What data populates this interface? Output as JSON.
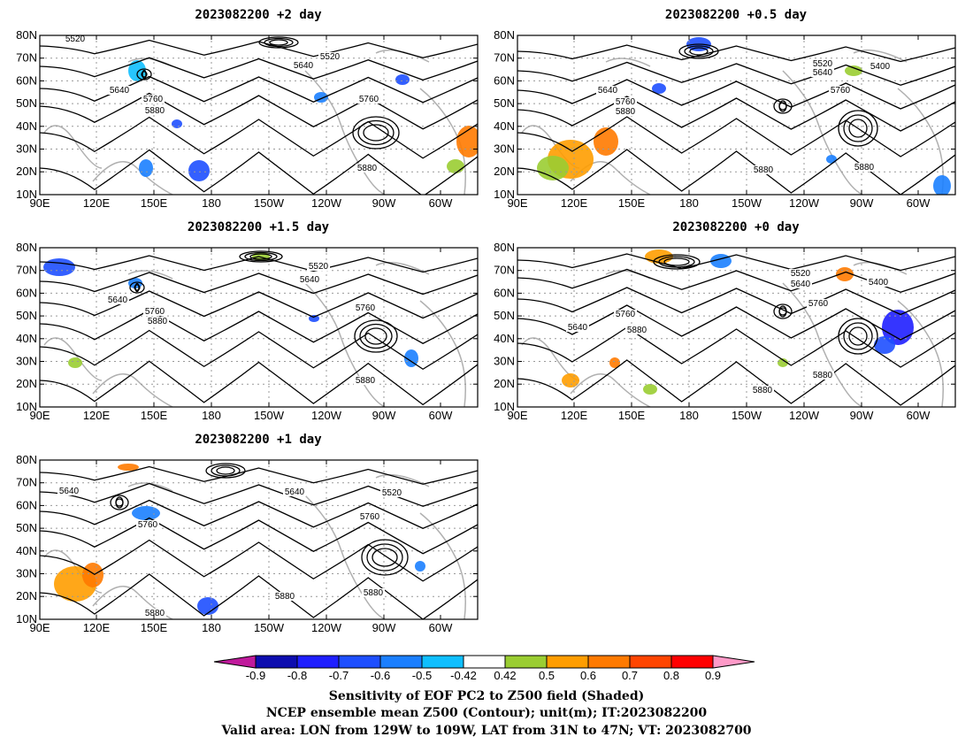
{
  "panels": [
    {
      "title": "2023082200 +2 day",
      "contour_labels": [
        "5520",
        "5520",
        "5640",
        "5640",
        "5760",
        "5760",
        "5880",
        "5880"
      ]
    },
    {
      "title": "2023082200 +0.5 day",
      "contour_labels": [
        "5520",
        "5400",
        "5640",
        "5640",
        "5760",
        "5760",
        "5880",
        "5880",
        "5880"
      ]
    },
    {
      "title": "2023082200 +1.5 day",
      "contour_labels": [
        "5520",
        "5640",
        "5640",
        "5760",
        "5760",
        "5880",
        "5880"
      ]
    },
    {
      "title": "2023082200 +0 day",
      "contour_labels": [
        "5520",
        "5640",
        "5400",
        "5760",
        "5760",
        "5640",
        "5880",
        "5880",
        "5880"
      ]
    },
    {
      "title": "2023082200 +1 day",
      "contour_labels": [
        "5640",
        "5640",
        "5520",
        "5760",
        "5760",
        "5880",
        "5880",
        "5880"
      ]
    }
  ],
  "axes": {
    "lat_ticks": [
      "80N",
      "70N",
      "60N",
      "50N",
      "40N",
      "30N",
      "20N",
      "10N"
    ],
    "lon_ticks": [
      "90E",
      "120E",
      "150E",
      "180",
      "150W",
      "120W",
      "90W",
      "60W"
    ]
  },
  "colorbar": {
    "labels": [
      "-0.9",
      "-0.8",
      "-0.7",
      "-0.6",
      "-0.5",
      "-0.42",
      "0.42",
      "0.5",
      "0.6",
      "0.7",
      "0.8",
      "0.9"
    ],
    "colors": [
      "#c01a9c",
      "#0d0daf",
      "#1f1fff",
      "#1e4fff",
      "#1b7fff",
      "#0fbfff",
      "#ffffff",
      "#9acd32",
      "#ff9d00",
      "#ff7a00",
      "#ff4500",
      "#ff0000",
      "#ff9ac8"
    ]
  },
  "caption": {
    "line1": "Sensitivity of EOF PC2 to Z500 field (Shaded)",
    "line2": "NCEP ensemble mean Z500 (Contour); unit(m); IT:2023082200",
    "line3": "Valid area: LON from 129W to 109W, LAT from 31N to 47N; VT: 2023082700"
  }
}
